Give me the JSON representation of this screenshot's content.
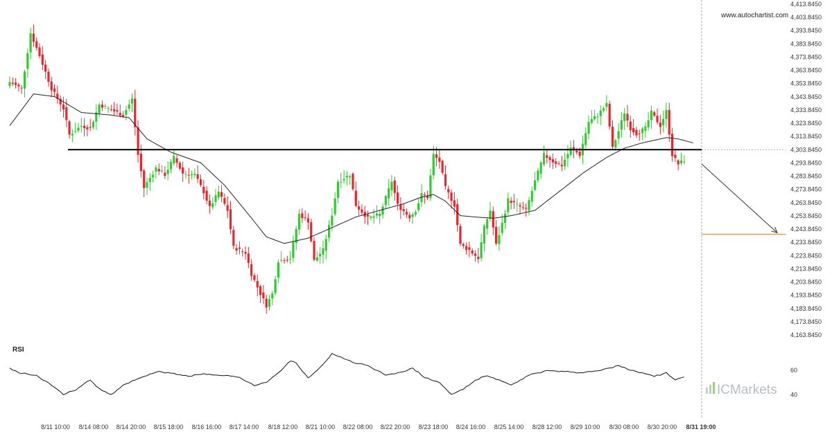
{
  "watermark": "www.autochartist.com",
  "brand": {
    "text": "ICMarkets",
    "bar_colors": [
      "#c9cdd2",
      "#b3d9a0",
      "#9fcc86"
    ]
  },
  "colors": {
    "bull": "#2ecc2e",
    "bear": "#e8262c",
    "support_line": "#000000",
    "target_line": "#e07b39",
    "ma_line": "#222222",
    "rsi_line": "#111111"
  },
  "chart_data": [
    {
      "type": "candlestick",
      "title": "",
      "y_ticks": [
        "4,413.8450",
        "4,403.8450",
        "4,393.8450",
        "4,383.8450",
        "4,373.8450",
        "4,363.8450",
        "4,353.8450",
        "4,343.8450",
        "4,333.8450",
        "4,323.8450",
        "4,313.8450",
        "4,303.8450",
        "4,293.8450",
        "4,283.8450",
        "4,273.8450",
        "4,263.8450",
        "4,253.8450",
        "4,243.8450",
        "4,233.8450",
        "4,223.8450",
        "4,213.8450",
        "4,203.8450",
        "4,193.8450",
        "4,183.8450",
        "4,173.8450",
        "4,163.8450"
      ],
      "ylim": [
        4163.845,
        4413.845
      ],
      "x_ticks": [
        "8/11 10:00",
        "8/14 08:00",
        "8/14 20:00",
        "8/15 18:00",
        "8/16 16:00",
        "8/17 14:00",
        "8/18 12:00",
        "8/21 10:00",
        "8/22 08:00",
        "8/22 20:00",
        "8/23 18:00",
        "8/24 16:00",
        "8/25 14:00",
        "8/28 12:00",
        "8/29 10:00",
        "8/30 08:00",
        "8/30 20:00",
        "8/31 19:00"
      ],
      "current_x_label": "8/31 19:00",
      "support_level": 4303.85,
      "target_level": 4240.0,
      "forecast": {
        "from": 4293.0,
        "to": 4240.0
      },
      "key_points": [
        {
          "i": 0,
          "v": 4355
        },
        {
          "i": 4,
          "v": 4350
        },
        {
          "i": 7,
          "v": 4392
        },
        {
          "i": 10,
          "v": 4375
        },
        {
          "i": 14,
          "v": 4350
        },
        {
          "i": 18,
          "v": 4335
        },
        {
          "i": 20,
          "v": 4315
        },
        {
          "i": 24,
          "v": 4322
        },
        {
          "i": 27,
          "v": 4320
        },
        {
          "i": 30,
          "v": 4338
        },
        {
          "i": 34,
          "v": 4334
        },
        {
          "i": 38,
          "v": 4330
        },
        {
          "i": 41,
          "v": 4342
        },
        {
          "i": 43,
          "v": 4300
        },
        {
          "i": 45,
          "v": 4275
        },
        {
          "i": 49,
          "v": 4290
        },
        {
          "i": 52,
          "v": 4285
        },
        {
          "i": 55,
          "v": 4298
        },
        {
          "i": 58,
          "v": 4286
        },
        {
          "i": 62,
          "v": 4285
        },
        {
          "i": 65,
          "v": 4272
        },
        {
          "i": 67,
          "v": 4260
        },
        {
          "i": 70,
          "v": 4272
        },
        {
          "i": 73,
          "v": 4258
        },
        {
          "i": 75,
          "v": 4230
        },
        {
          "i": 79,
          "v": 4226
        },
        {
          "i": 81,
          "v": 4210
        },
        {
          "i": 84,
          "v": 4195
        },
        {
          "i": 86,
          "v": 4186
        },
        {
          "i": 88,
          "v": 4195
        },
        {
          "i": 90,
          "v": 4220
        },
        {
          "i": 94,
          "v": 4222
        },
        {
          "i": 97,
          "v": 4255
        },
        {
          "i": 100,
          "v": 4250
        },
        {
          "i": 102,
          "v": 4220
        },
        {
          "i": 105,
          "v": 4228
        },
        {
          "i": 108,
          "v": 4255
        },
        {
          "i": 110,
          "v": 4280
        },
        {
          "i": 114,
          "v": 4285
        },
        {
          "i": 116,
          "v": 4262
        },
        {
          "i": 120,
          "v": 4252
        },
        {
          "i": 124,
          "v": 4255
        },
        {
          "i": 128,
          "v": 4280
        },
        {
          "i": 130,
          "v": 4262
        },
        {
          "i": 134,
          "v": 4253
        },
        {
          "i": 136,
          "v": 4258
        },
        {
          "i": 138,
          "v": 4270
        },
        {
          "i": 140,
          "v": 4268
        },
        {
          "i": 142,
          "v": 4300
        },
        {
          "i": 144,
          "v": 4295
        },
        {
          "i": 146,
          "v": 4275
        },
        {
          "i": 149,
          "v": 4262
        },
        {
          "i": 151,
          "v": 4232
        },
        {
          "i": 154,
          "v": 4228
        },
        {
          "i": 157,
          "v": 4222
        },
        {
          "i": 159,
          "v": 4245
        },
        {
          "i": 161,
          "v": 4258
        },
        {
          "i": 163,
          "v": 4232
        },
        {
          "i": 165,
          "v": 4248
        },
        {
          "i": 167,
          "v": 4266
        },
        {
          "i": 170,
          "v": 4262
        },
        {
          "i": 173,
          "v": 4258
        },
        {
          "i": 176,
          "v": 4280
        },
        {
          "i": 179,
          "v": 4300
        },
        {
          "i": 182,
          "v": 4295
        },
        {
          "i": 185,
          "v": 4292
        },
        {
          "i": 188,
          "v": 4305
        },
        {
          "i": 191,
          "v": 4300
        },
        {
          "i": 194,
          "v": 4325
        },
        {
          "i": 197,
          "v": 4330
        },
        {
          "i": 200,
          "v": 4338
        },
        {
          "i": 202,
          "v": 4305
        },
        {
          "i": 204,
          "v": 4318
        },
        {
          "i": 206,
          "v": 4332
        },
        {
          "i": 208,
          "v": 4320
        },
        {
          "i": 210,
          "v": 4316
        },
        {
          "i": 213,
          "v": 4320
        },
        {
          "i": 215,
          "v": 4332
        },
        {
          "i": 218,
          "v": 4322
        },
        {
          "i": 220,
          "v": 4333
        },
        {
          "i": 222,
          "v": 4300
        },
        {
          "i": 224,
          "v": 4293
        },
        {
          "i": 226,
          "v": 4296
        }
      ],
      "moving_average": [
        {
          "i": 0,
          "v": 4322
        },
        {
          "i": 8,
          "v": 4346
        },
        {
          "i": 15,
          "v": 4344
        },
        {
          "i": 24,
          "v": 4332
        },
        {
          "i": 34,
          "v": 4330
        },
        {
          "i": 40,
          "v": 4328
        },
        {
          "i": 46,
          "v": 4312
        },
        {
          "i": 54,
          "v": 4302
        },
        {
          "i": 64,
          "v": 4294
        },
        {
          "i": 72,
          "v": 4277
        },
        {
          "i": 80,
          "v": 4255
        },
        {
          "i": 86,
          "v": 4238
        },
        {
          "i": 92,
          "v": 4233
        },
        {
          "i": 100,
          "v": 4237
        },
        {
          "i": 108,
          "v": 4245
        },
        {
          "i": 116,
          "v": 4253
        },
        {
          "i": 124,
          "v": 4258
        },
        {
          "i": 132,
          "v": 4263
        },
        {
          "i": 138,
          "v": 4268
        },
        {
          "i": 142,
          "v": 4270
        },
        {
          "i": 146,
          "v": 4265
        },
        {
          "i": 151,
          "v": 4254
        },
        {
          "i": 156,
          "v": 4253
        },
        {
          "i": 162,
          "v": 4252
        },
        {
          "i": 168,
          "v": 4254
        },
        {
          "i": 176,
          "v": 4258
        },
        {
          "i": 184,
          "v": 4272
        },
        {
          "i": 192,
          "v": 4286
        },
        {
          "i": 200,
          "v": 4298
        },
        {
          "i": 206,
          "v": 4305
        },
        {
          "i": 212,
          "v": 4309
        },
        {
          "i": 220,
          "v": 4313
        },
        {
          "i": 224,
          "v": 4312
        },
        {
          "i": 229,
          "v": 4309
        }
      ]
    },
    {
      "type": "line",
      "title": "RSI",
      "y_ticks": [
        "60",
        "40"
      ],
      "ylim": [
        30,
        80
      ],
      "key_points": [
        {
          "i": 0,
          "v": 62
        },
        {
          "i": 3,
          "v": 58
        },
        {
          "i": 9,
          "v": 56
        },
        {
          "i": 14,
          "v": 48
        },
        {
          "i": 18,
          "v": 40
        },
        {
          "i": 22,
          "v": 44
        },
        {
          "i": 27,
          "v": 52
        },
        {
          "i": 31,
          "v": 43
        },
        {
          "i": 34,
          "v": 40
        },
        {
          "i": 38,
          "v": 48
        },
        {
          "i": 42,
          "v": 52
        },
        {
          "i": 46,
          "v": 56
        },
        {
          "i": 50,
          "v": 59
        },
        {
          "i": 56,
          "v": 57
        },
        {
          "i": 60,
          "v": 55
        },
        {
          "i": 64,
          "v": 57
        },
        {
          "i": 70,
          "v": 56
        },
        {
          "i": 76,
          "v": 55
        },
        {
          "i": 82,
          "v": 48
        },
        {
          "i": 86,
          "v": 50
        },
        {
          "i": 90,
          "v": 58
        },
        {
          "i": 94,
          "v": 68
        },
        {
          "i": 96,
          "v": 66
        },
        {
          "i": 100,
          "v": 54
        },
        {
          "i": 104,
          "v": 62
        },
        {
          "i": 108,
          "v": 74
        },
        {
          "i": 112,
          "v": 70
        },
        {
          "i": 116,
          "v": 66
        },
        {
          "i": 120,
          "v": 64
        },
        {
          "i": 126,
          "v": 56
        },
        {
          "i": 131,
          "v": 58
        },
        {
          "i": 135,
          "v": 62
        },
        {
          "i": 139,
          "v": 54
        },
        {
          "i": 144,
          "v": 50
        },
        {
          "i": 148,
          "v": 40
        },
        {
          "i": 152,
          "v": 45
        },
        {
          "i": 156,
          "v": 52
        },
        {
          "i": 160,
          "v": 56
        },
        {
          "i": 164,
          "v": 52
        },
        {
          "i": 168,
          "v": 48
        },
        {
          "i": 174,
          "v": 56
        },
        {
          "i": 180,
          "v": 60
        },
        {
          "i": 186,
          "v": 59
        },
        {
          "i": 192,
          "v": 58
        },
        {
          "i": 198,
          "v": 60
        },
        {
          "i": 204,
          "v": 64
        },
        {
          "i": 208,
          "v": 60
        },
        {
          "i": 212,
          "v": 58
        },
        {
          "i": 216,
          "v": 55
        },
        {
          "i": 220,
          "v": 58
        },
        {
          "i": 223,
          "v": 52
        },
        {
          "i": 226,
          "v": 55
        }
      ]
    }
  ]
}
